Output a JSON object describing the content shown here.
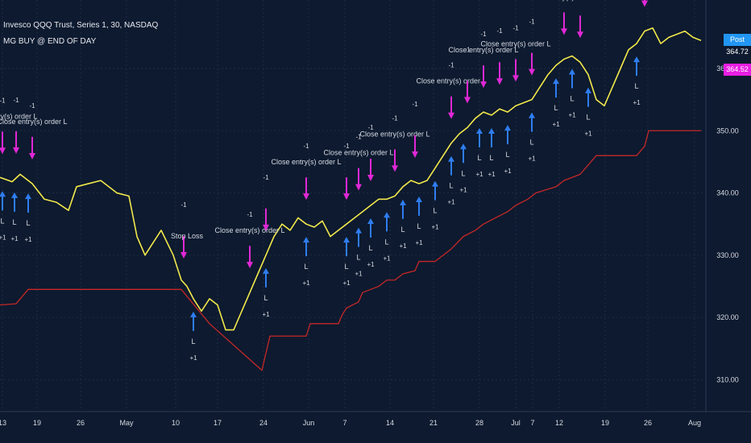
{
  "chart_data": {
    "type": "line",
    "title": "Invesco QQQ Trust, Series 1, 30, NASDAQ",
    "subtitle": "MG BUY @ END OF DAY",
    "xlabel": "",
    "ylabel": "",
    "ylim": [
      305,
      371
    ],
    "yticks": [
      310,
      320,
      330,
      340,
      350,
      360
    ],
    "ytick_labels": [
      "310.00",
      "320.00",
      "330.00",
      "340.00",
      "350.00",
      "360.00"
    ],
    "xtick_labels": [
      "13",
      "19",
      "26",
      "May",
      "10",
      "17",
      "24",
      "Jun",
      "7",
      "14",
      "21",
      "28",
      "Jul",
      "7",
      "12",
      "19",
      "26",
      "Aug"
    ],
    "grid": true,
    "series": [
      {
        "name": "price",
        "color": "#f2e84b",
        "x": [
          0,
          15,
          25,
          40,
          55,
          70,
          85,
          95,
          110,
          125,
          145,
          160,
          170,
          180,
          190,
          200,
          215,
          225,
          232,
          240,
          250,
          260,
          270,
          280,
          290,
          300,
          310,
          320,
          330,
          340,
          350,
          360,
          370,
          380,
          390,
          400,
          410,
          420,
          430,
          440,
          450,
          460,
          470,
          480,
          490,
          500,
          510,
          520,
          530,
          540,
          550,
          560,
          570,
          580,
          590,
          600,
          610,
          620,
          630,
          640,
          650,
          660,
          670,
          680,
          690,
          700,
          710,
          720,
          730,
          740,
          750,
          760,
          770,
          780,
          790,
          800,
          810,
          820,
          830,
          840,
          850,
          860,
          870
        ],
        "values": [
          342.5,
          341.8,
          343.0,
          341.5,
          339.0,
          338.5,
          337.2,
          341.0,
          341.5,
          342.0,
          340.0,
          339.5,
          333.0,
          330.0,
          332.0,
          334.0,
          330.0,
          326.0,
          325.0,
          323.0,
          321.0,
          323.0,
          322.0,
          318.0,
          318.0,
          321.0,
          324.0,
          327.0,
          330.0,
          333.0,
          335.0,
          334.0,
          336.0,
          335.0,
          334.5,
          335.5,
          333.0,
          334.0,
          335.0,
          336.0,
          337.0,
          338.0,
          339.0,
          339.0,
          339.5,
          341.0,
          342.0,
          341.5,
          342.0,
          344.0,
          346.0,
          348.0,
          349.5,
          350.5,
          352.0,
          353.0,
          352.5,
          353.5,
          353.0,
          354.0,
          354.5,
          355.0,
          357.0,
          359.0,
          360.5,
          361.5,
          362.0,
          361.0,
          359.0,
          355.0,
          354.0,
          357.0,
          360.0,
          363.0,
          364.0,
          366.0,
          366.5,
          364.0,
          365.0,
          365.5,
          366.0,
          365.0,
          364.5
        ]
      },
      {
        "name": "stop",
        "color": "#c62828",
        "x": [
          0,
          20,
          35,
          220,
          225,
          260,
          325,
          335,
          380,
          385,
          420,
          425,
          430,
          445,
          450,
          470,
          480,
          490,
          500,
          515,
          520,
          540,
          560,
          575,
          590,
          600,
          615,
          630,
          640,
          655,
          665,
          690,
          700,
          720,
          740,
          790,
          800,
          805,
          870
        ],
        "values": [
          322,
          322.2,
          324.5,
          324.5,
          324.5,
          319,
          311.5,
          317,
          317,
          319,
          319,
          320.5,
          321.5,
          322.5,
          324,
          325,
          326,
          326,
          327,
          327.5,
          329,
          329,
          331,
          333,
          334,
          335,
          336,
          337,
          338,
          339,
          340,
          341,
          342,
          343,
          346,
          346,
          347.5,
          350,
          350
        ]
      }
    ],
    "annotations": [
      "Close entry(s) order L",
      "Stop Loss",
      "-1",
      "+1",
      "L"
    ],
    "price_tags": [
      "364.72",
      "364.52"
    ],
    "price_tag_labels": [
      "Post",
      ""
    ]
  },
  "colors": {
    "background": "#0d1a2f",
    "grid": "#1e2c44",
    "text": "#d7dbe3",
    "buy_arrow": "#2f7df0",
    "sell_arrow": "#e028d6",
    "tag_blue": "#2196f3",
    "tag_magenta": "#e91ee3"
  }
}
